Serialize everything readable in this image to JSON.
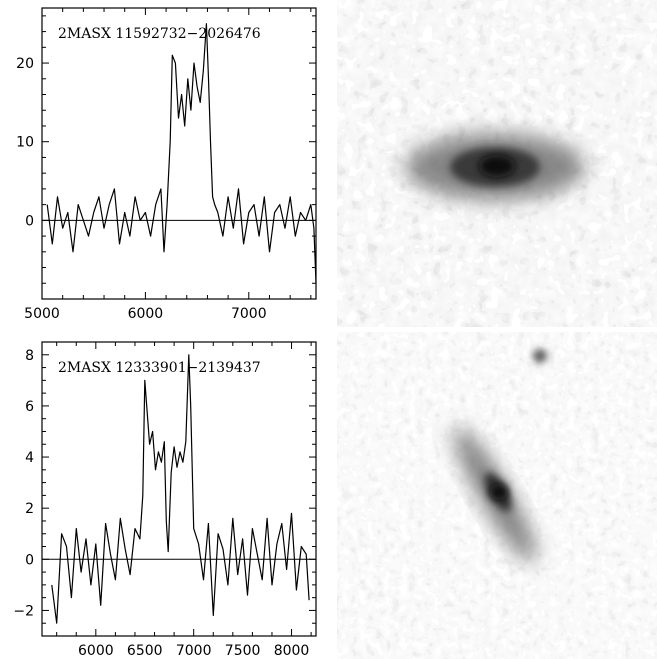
{
  "chart_data": [
    {
      "type": "line",
      "title": "2MASX 11592732−2026476",
      "xlabel": "",
      "ylabel": "",
      "xlim": [
        5000,
        7650
      ],
      "ylim": [
        -10,
        27
      ],
      "xticks": [
        5000,
        6000,
        7000
      ],
      "yticks": [
        0,
        10,
        20
      ],
      "baseline": 0,
      "grid": false,
      "series": [
        {
          "x": [
            5050,
            5100,
            5150,
            5200,
            5250,
            5300,
            5350,
            5400,
            5450,
            5500,
            5550,
            5600,
            5650,
            5700,
            5750,
            5800,
            5850,
            5900,
            5950,
            6000,
            6050,
            6100,
            6150,
            6180,
            6210,
            6240,
            6260,
            6290,
            6320,
            6350,
            6380,
            6410,
            6440,
            6470,
            6500,
            6530,
            6560,
            6590,
            6610,
            6630,
            6650,
            6670,
            6700,
            6750,
            6800,
            6850,
            6900,
            6950,
            7000,
            7050,
            7100,
            7150,
            7200,
            7250,
            7300,
            7350,
            7400,
            7450,
            7500,
            7550,
            7600,
            7630,
            7650
          ],
          "y": [
            2,
            -3,
            3,
            -1,
            1,
            -4,
            2,
            0,
            -2,
            1,
            3,
            -1,
            2,
            4,
            -3,
            1,
            -2,
            3,
            0,
            1,
            -2,
            2,
            4,
            -4,
            2,
            10,
            21,
            20,
            13,
            16,
            12,
            18,
            14,
            20,
            17,
            15,
            19,
            25,
            18,
            10,
            3,
            2,
            1,
            -2,
            3,
            -1,
            4,
            -3,
            1,
            2,
            -2,
            3,
            -4,
            1,
            2,
            -1,
            3,
            -2,
            1,
            0,
            2,
            -1,
            -8
          ]
        }
      ]
    },
    {
      "type": "line",
      "title": "2MASX 12333901−2139437",
      "xlabel": "",
      "ylabel": "",
      "xlim": [
        5450,
        8250
      ],
      "ylim": [
        -3,
        8.5
      ],
      "xticks": [
        6000,
        6500,
        7000,
        7500,
        8000
      ],
      "yticks": [
        -2,
        0,
        2,
        4,
        6,
        8
      ],
      "baseline": 0,
      "grid": false,
      "series": [
        {
          "x": [
            5550,
            5600,
            5650,
            5700,
            5750,
            5800,
            5850,
            5900,
            5950,
            6000,
            6050,
            6100,
            6150,
            6200,
            6250,
            6300,
            6350,
            6400,
            6450,
            6480,
            6500,
            6520,
            6550,
            6580,
            6610,
            6640,
            6670,
            6700,
            6720,
            6740,
            6770,
            6800,
            6830,
            6860,
            6890,
            6920,
            6950,
            6970,
            7000,
            7050,
            7100,
            7150,
            7200,
            7250,
            7300,
            7350,
            7400,
            7450,
            7500,
            7550,
            7600,
            7650,
            7700,
            7750,
            7800,
            7850,
            7900,
            7950,
            8000,
            8050,
            8100,
            8150,
            8180
          ],
          "y": [
            -1,
            -2.5,
            1,
            0.5,
            -1.5,
            1.2,
            -0.5,
            0.8,
            -1,
            0.6,
            -1.8,
            1.4,
            0.2,
            -0.8,
            1.6,
            0.4,
            -0.6,
            1.2,
            0.8,
            2.5,
            7,
            6,
            4.5,
            5,
            3.5,
            4.2,
            3.8,
            4.6,
            1.5,
            0.3,
            3.4,
            4.4,
            3.6,
            4.2,
            3.8,
            4.6,
            8,
            6,
            1.2,
            0.6,
            -0.8,
            1.4,
            -2.2,
            1,
            0.4,
            -1,
            1.6,
            -0.6,
            0.8,
            -1.4,
            1.2,
            0.2,
            -0.8,
            1.6,
            -1,
            0.6,
            1.4,
            -0.4,
            1.8,
            -1.2,
            0.5,
            0.2,
            -1.6
          ]
        }
      ]
    }
  ]
}
